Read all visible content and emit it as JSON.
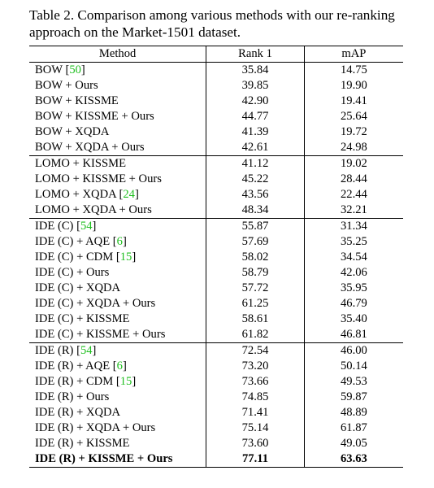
{
  "caption": "Table 2. Comparison among various methods with our re-ranking approach on the Market-1501 dataset.",
  "headers": [
    "Method",
    "Rank 1",
    "mAP"
  ],
  "groups": [
    [
      {
        "method": "BOW",
        "ref": "50",
        "rank1": "35.84",
        "map": "14.75"
      },
      {
        "method": "BOW + Ours",
        "rank1": "39.85",
        "map": "19.90"
      },
      {
        "method": "BOW + KISSME",
        "rank1": "42.90",
        "map": "19.41"
      },
      {
        "method": "BOW + KISSME + Ours",
        "rank1": "44.77",
        "map": "25.64"
      },
      {
        "method": "BOW + XQDA",
        "rank1": "41.39",
        "map": "19.72"
      },
      {
        "method": "BOW + XQDA + Ours",
        "rank1": "42.61",
        "map": "24.98"
      }
    ],
    [
      {
        "method": "LOMO + KISSME",
        "rank1": "41.12",
        "map": "19.02"
      },
      {
        "method": "LOMO + KISSME + Ours",
        "rank1": "45.22",
        "map": "28.44"
      },
      {
        "method": "LOMO + XQDA",
        "ref": "24",
        "rank1": "43.56",
        "map": "22.44"
      },
      {
        "method": "LOMO + XQDA + Ours",
        "rank1": "48.34",
        "map": "32.21"
      }
    ],
    [
      {
        "method": "IDE (C)",
        "ref": "54",
        "rank1": "55.87",
        "map": "31.34"
      },
      {
        "method": "IDE (C) + AQE",
        "ref": "6",
        "rank1": "57.69",
        "map": "35.25"
      },
      {
        "method": "IDE (C) + CDM",
        "ref": "15",
        "rank1": "58.02",
        "map": "34.54"
      },
      {
        "method": "IDE (C) + Ours",
        "rank1": "58.79",
        "map": "42.06"
      },
      {
        "method": "IDE (C) + XQDA",
        "rank1": "57.72",
        "map": "35.95"
      },
      {
        "method": "IDE (C) + XQDA + Ours",
        "rank1": "61.25",
        "map": "46.79"
      },
      {
        "method": "IDE (C) + KISSME",
        "rank1": "58.61",
        "map": "35.40"
      },
      {
        "method": "IDE (C) + KISSME + Ours",
        "rank1": "61.82",
        "map": "46.81"
      }
    ],
    [
      {
        "method": "IDE (R)",
        "ref": "54",
        "rank1": "72.54",
        "map": "46.00"
      },
      {
        "method": "IDE (R) + AQE",
        "ref": "6",
        "rank1": "73.20",
        "map": "50.14"
      },
      {
        "method": "IDE (R) + CDM",
        "ref": "15",
        "rank1": "73.66",
        "map": "49.53"
      },
      {
        "method": "IDE (R) + Ours",
        "rank1": "74.85",
        "map": "59.87"
      },
      {
        "method": "IDE (R) + XQDA",
        "rank1": "71.41",
        "map": "48.89"
      },
      {
        "method": "IDE (R) + XQDA + Ours",
        "rank1": "75.14",
        "map": "61.87"
      },
      {
        "method": "IDE (R) + KISSME",
        "rank1": "73.60",
        "map": "49.05"
      },
      {
        "method": "IDE (R) + KISSME + Ours",
        "rank1": "77.11",
        "map": "63.63",
        "bold": true
      }
    ]
  ]
}
